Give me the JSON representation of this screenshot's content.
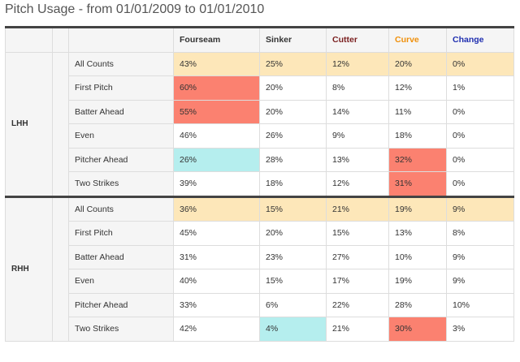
{
  "title": "Pitch Usage - from 01/01/2009 to 01/01/2010",
  "columns": [
    "Fourseam",
    "Sinker",
    "Cutter",
    "Curve",
    "Change"
  ],
  "column_colors": [
    "#333333",
    "#333333",
    "#7a1f1f",
    "#f0900a",
    "#1f2fb0"
  ],
  "highlight_colors": {
    "all_counts": "#fde7b9",
    "high": "#fb8170",
    "low": "#b5eeee"
  },
  "groups": [
    {
      "name": "LHH",
      "rows": [
        {
          "label": "All Counts",
          "values": [
            "43%",
            "25%",
            "12%",
            "20%",
            "0%"
          ],
          "highlights": [
            "",
            "",
            "",
            "",
            ""
          ]
        },
        {
          "label": "First Pitch",
          "values": [
            "60%",
            "20%",
            "8%",
            "12%",
            "1%"
          ],
          "highlights": [
            "high",
            "",
            "",
            "",
            ""
          ]
        },
        {
          "label": "Batter Ahead",
          "values": [
            "55%",
            "20%",
            "14%",
            "11%",
            "0%"
          ],
          "highlights": [
            "high",
            "",
            "",
            "",
            ""
          ]
        },
        {
          "label": "Even",
          "values": [
            "46%",
            "26%",
            "9%",
            "18%",
            "0%"
          ],
          "highlights": [
            "",
            "",
            "",
            "",
            ""
          ]
        },
        {
          "label": "Pitcher Ahead",
          "values": [
            "26%",
            "28%",
            "13%",
            "32%",
            "0%"
          ],
          "highlights": [
            "low",
            "",
            "",
            "high",
            ""
          ]
        },
        {
          "label": "Two Strikes",
          "values": [
            "39%",
            "18%",
            "12%",
            "31%",
            "0%"
          ],
          "highlights": [
            "",
            "",
            "",
            "high",
            ""
          ]
        }
      ]
    },
    {
      "name": "RHH",
      "rows": [
        {
          "label": "All Counts",
          "values": [
            "36%",
            "15%",
            "21%",
            "19%",
            "9%"
          ],
          "highlights": [
            "",
            "",
            "",
            "",
            ""
          ]
        },
        {
          "label": "First Pitch",
          "values": [
            "45%",
            "20%",
            "15%",
            "13%",
            "8%"
          ],
          "highlights": [
            "",
            "",
            "",
            "",
            ""
          ]
        },
        {
          "label": "Batter Ahead",
          "values": [
            "31%",
            "23%",
            "27%",
            "10%",
            "9%"
          ],
          "highlights": [
            "",
            "",
            "",
            "",
            ""
          ]
        },
        {
          "label": "Even",
          "values": [
            "40%",
            "15%",
            "17%",
            "19%",
            "9%"
          ],
          "highlights": [
            "",
            "",
            "",
            "",
            ""
          ]
        },
        {
          "label": "Pitcher Ahead",
          "values": [
            "33%",
            "6%",
            "22%",
            "28%",
            "10%"
          ],
          "highlights": [
            "",
            "",
            "",
            "",
            ""
          ]
        },
        {
          "label": "Two Strikes",
          "values": [
            "42%",
            "4%",
            "21%",
            "30%",
            "3%"
          ],
          "highlights": [
            "",
            "low",
            "",
            "high",
            ""
          ]
        }
      ]
    }
  ]
}
